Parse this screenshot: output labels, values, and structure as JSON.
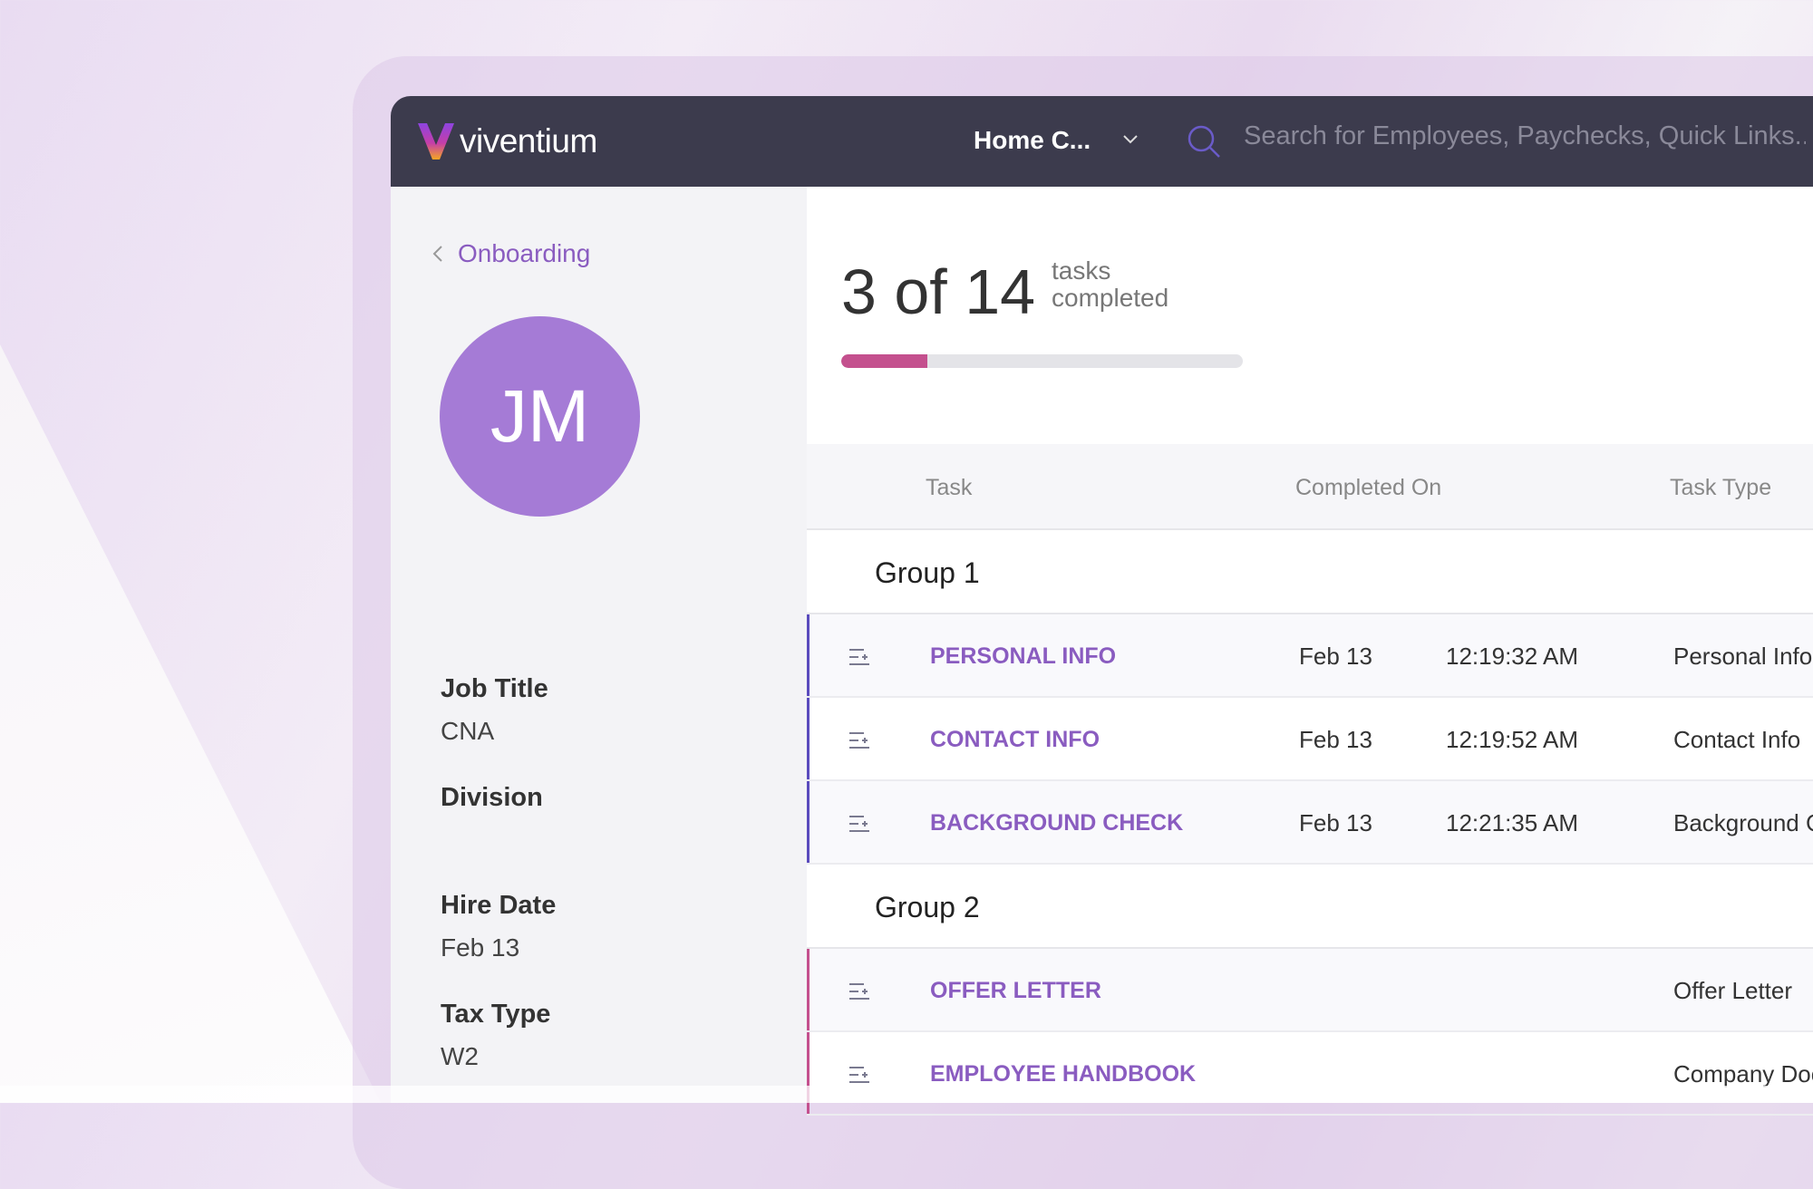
{
  "header": {
    "brand": "viventium",
    "company": "Home C...",
    "search_placeholder": "Search for Employees, Paychecks, Quick Links..."
  },
  "sidebar": {
    "back_label": "Onboarding",
    "initials": "JM",
    "fields": [
      {
        "label": "Job Title",
        "value": "CNA"
      },
      {
        "label": "Division",
        "value": ""
      },
      {
        "label": "Hire Date",
        "value": "Feb 13"
      },
      {
        "label": "Tax Type",
        "value": "W2"
      }
    ]
  },
  "progress": {
    "completed": 3,
    "total": 14,
    "count_text": "3 of 14",
    "label_line1": "tasks",
    "label_line2": "completed",
    "fraction": 0.214,
    "color": "#c4508e"
  },
  "table": {
    "columns": [
      "Task",
      "Completed On",
      "Task Type"
    ],
    "groups": [
      {
        "name": "Group 1",
        "accent": "#5a4bbd",
        "rows": [
          {
            "task": "PERSONAL INFO",
            "date": "Feb 13",
            "time": "12:19:32 AM",
            "type": "Personal Info"
          },
          {
            "task": "CONTACT INFO",
            "date": "Feb 13",
            "time": "12:19:52 AM",
            "type": "Contact Info"
          },
          {
            "task": "BACKGROUND CHECK",
            "date": "Feb 13",
            "time": "12:21:35 AM",
            "type": "Background Check"
          }
        ]
      },
      {
        "name": "Group 2",
        "accent": "#c4508e",
        "rows": [
          {
            "task": "OFFER LETTER",
            "date": "",
            "time": "",
            "type": "Offer Letter"
          },
          {
            "task": "EMPLOYEE HANDBOOK",
            "date": "",
            "time": "",
            "type": "Company Documents"
          }
        ]
      }
    ]
  }
}
